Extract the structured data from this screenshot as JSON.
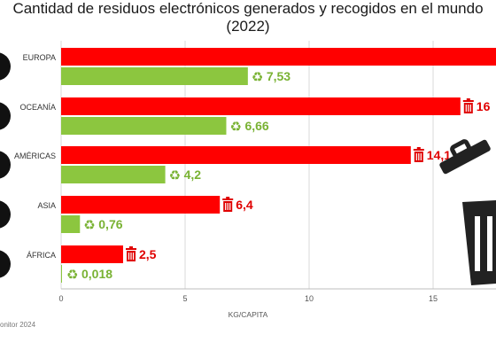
{
  "title_line1": "Cantidad de residuos electrónicos generados y recogidos en el mundo",
  "title_line2": "(2022)",
  "source": "onitor 2024",
  "colors": {
    "generated": "#ff0000",
    "collected": "#8cc63f",
    "generated_label": "#e00000",
    "collected_label": "#79b233"
  },
  "chart_data": {
    "type": "bar",
    "orientation": "horizontal",
    "title": "Cantidad de residuos electrónicos generados y recogidos en el mundo (2022)",
    "xlabel": "KG/CAPITA",
    "xlim": [
      0,
      17.5
    ],
    "xticks": [
      "0",
      "5",
      "10",
      "15"
    ],
    "grid": true,
    "categories": [
      "EUROPA",
      "OCEANÍA",
      "AMÉRICAS",
      "ASIA",
      "ÁFRICA"
    ],
    "series": [
      {
        "values": [
          17.6,
          16.1,
          14.1,
          6.4,
          2.5
        ],
        "labels": [
          "",
          "16",
          "14,1",
          "6,4",
          "2,5"
        ]
      },
      {
        "values": [
          7.53,
          6.66,
          4.2,
          0.76,
          0.018
        ],
        "labels": [
          "7,53",
          "6,66",
          "4,2",
          "0,76",
          "0,018"
        ]
      }
    ]
  }
}
